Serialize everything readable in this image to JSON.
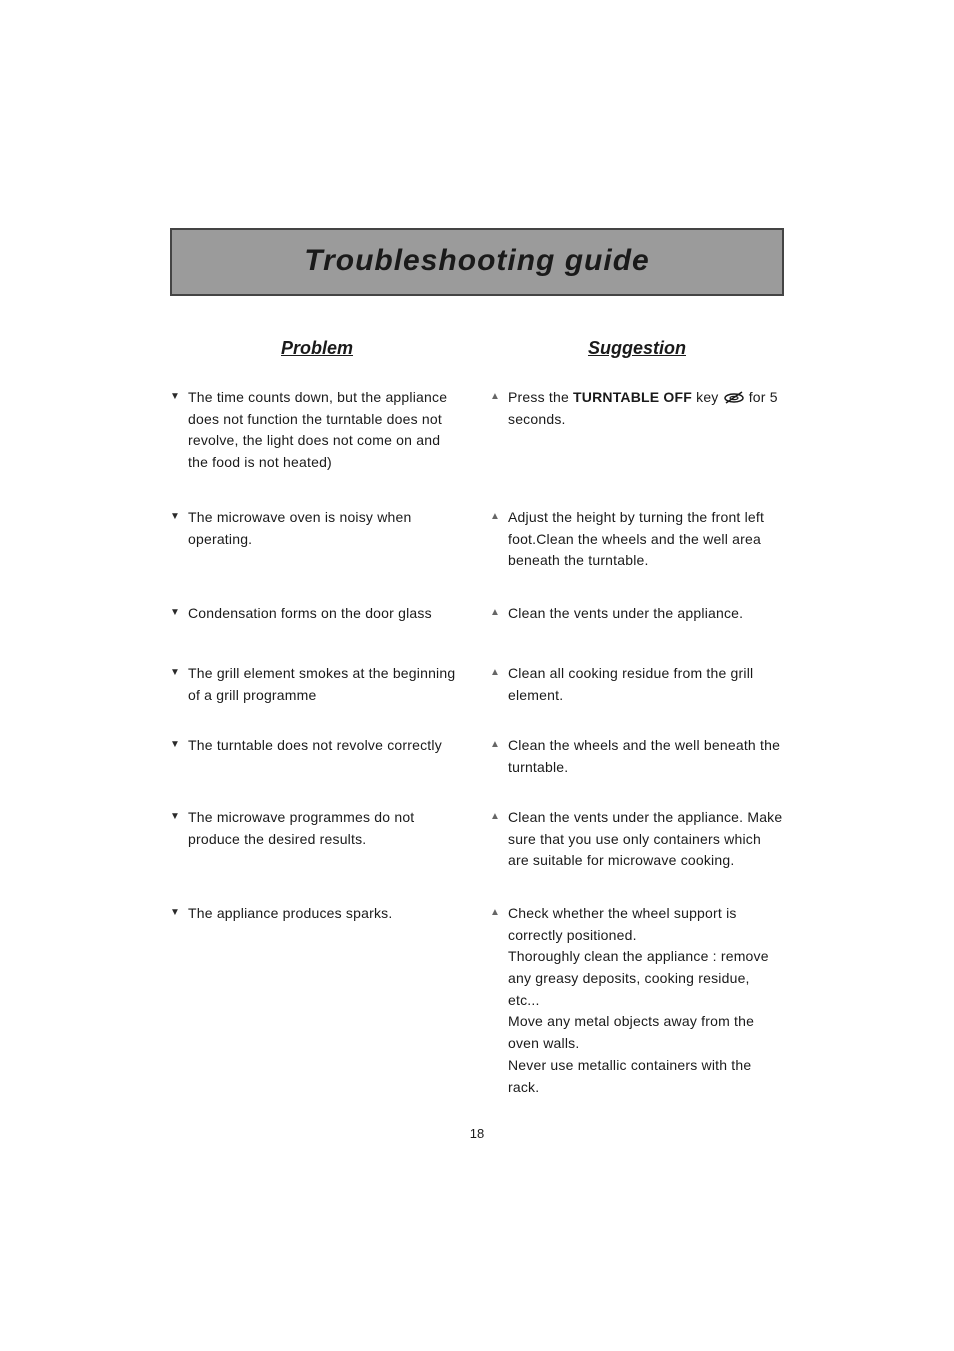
{
  "title": "Troubleshooting guide",
  "headers": {
    "problem": "Problem",
    "suggestion": "Suggestion"
  },
  "bullets": {
    "problem": "▼",
    "suggestion": "▲"
  },
  "colors": {
    "title_bg": "#9b9b9b",
    "title_border": "#444444",
    "text": "#1a1a1a",
    "bullet_suggestion": "#666666"
  },
  "rows": [
    {
      "problem": "The time counts down, but the appliance does not function the turntable does not revolve, the light does not come on and the food is not heated)",
      "suggestion_pre": "Press the ",
      "suggestion_bold": "TURNTABLE OFF",
      "suggestion_mid": " key ",
      "suggestion_icon": "turntable-off-icon",
      "suggestion_post": " for 5 seconds.",
      "min_height": 96
    },
    {
      "problem": "The microwave oven is noisy when operating.",
      "suggestion": "Adjust the height by turning the front left foot.Clean the wheels and the well area beneath the turntable.",
      "min_height": 72
    },
    {
      "problem": "Condensation forms on the door glass",
      "suggestion": "Clean the vents under the appliance.",
      "min_height": 36
    },
    {
      "problem": "The grill element smokes at the beginning of a grill programme",
      "suggestion": "Clean all cooking residue from the grill element.",
      "min_height": 48
    },
    {
      "problem": "The turntable does not revolve correctly",
      "suggestion": "Clean the wheels and the well beneath the turntable.",
      "min_height": 48
    },
    {
      "problem": "The microwave programmes do not produce the desired results.",
      "suggestion": "Clean the vents under the appliance. Make sure that you use only containers which are suitable for microwave cooking.",
      "min_height": 72
    },
    {
      "problem": "The appliance produces sparks.",
      "suggestion": "Check whether the wheel support is correctly positioned.\nThoroughly clean the appliance : remove any greasy deposits, cooking residue, etc...\nMove any metal objects away from the oven walls.\nNever use metallic containers with the rack.",
      "min_height": 180
    }
  ],
  "page_number": "18",
  "typography": {
    "title_fontsize": 30,
    "header_fontsize": 18,
    "body_fontsize": 14,
    "pagenum_fontsize": 13,
    "title_style": "italic bold",
    "header_style": "italic bold underline"
  }
}
